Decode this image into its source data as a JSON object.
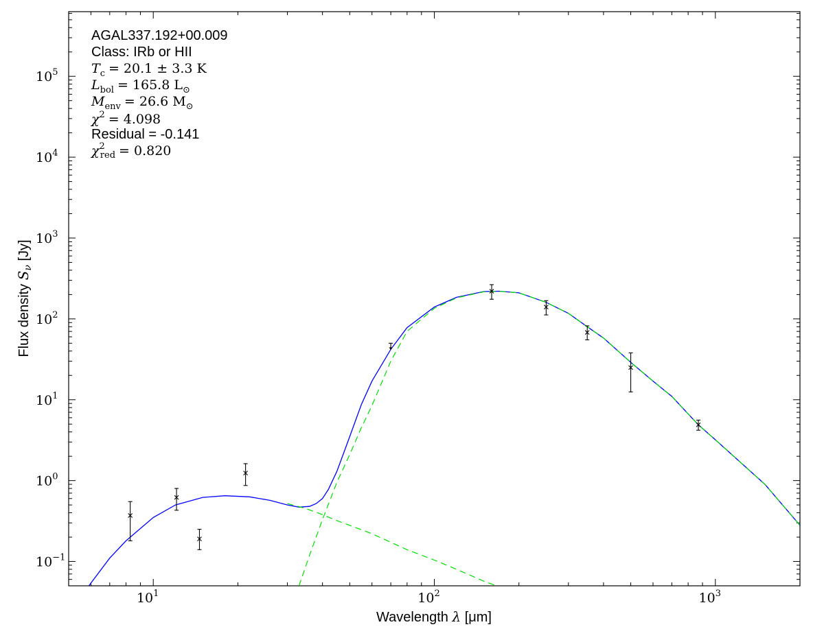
{
  "chart_data": {
    "type": "line",
    "title": "",
    "xlabel": "Wavelength",
    "xlabel_symbol": "λ",
    "xlabel_unit": "[μm]",
    "ylabel": "Flux density",
    "ylabel_symbol": "S",
    "ylabel_sub": "ν",
    "ylabel_unit": "[Jy]",
    "xscale": "log",
    "yscale": "log",
    "xlim": [
      5,
      2000
    ],
    "ylim": [
      0.05,
      630000
    ],
    "grid": false,
    "x_ticks": [
      {
        "base": "10",
        "exp": "1",
        "value": 10
      },
      {
        "base": "10",
        "exp": "2",
        "value": 100
      },
      {
        "base": "10",
        "exp": "3",
        "value": 1000
      }
    ],
    "y_ticks": [
      {
        "base": "10",
        "exp": "−1",
        "value": 0.1
      },
      {
        "base": "10",
        "exp": "0",
        "value": 1
      },
      {
        "base": "10",
        "exp": "1",
        "value": 10
      },
      {
        "base": "10",
        "exp": "2",
        "value": 100
      },
      {
        "base": "10",
        "exp": "3",
        "value": 1000
      },
      {
        "base": "10",
        "exp": "4",
        "value": 10000
      },
      {
        "base": "10",
        "exp": "5",
        "value": 100000
      }
    ],
    "annotations": {
      "source": "AGAL337.192+00.009",
      "class_line": "Class: IRb or HII",
      "tc": {
        "symbol": "T",
        "sub": "c",
        "value": "= 20.1 ± 3.3 K"
      },
      "lbol": {
        "symbol": "L",
        "sub": "bol",
        "value": "= 165.8 L",
        "unit_sub": "⊙"
      },
      "menv": {
        "symbol": "M",
        "sub": "env",
        "value": "= 26.6 M",
        "unit_sub": "⊙"
      },
      "chi2": {
        "symbol": "χ",
        "sup": "2",
        "value": "= 4.098"
      },
      "residual": "Residual = -0.141",
      "chi2red": {
        "symbol": "χ",
        "sup": "2",
        "sub": "red",
        "value": "= 0.820"
      }
    },
    "observations": [
      {
        "x": 8.28,
        "y": 0.37,
        "yerr_low": 0.18,
        "yerr_high": 0.55
      },
      {
        "x": 12.1,
        "y": 0.62,
        "yerr_low": 0.43,
        "yerr_high": 0.8
      },
      {
        "x": 14.6,
        "y": 0.19,
        "yerr_low": 0.14,
        "yerr_high": 0.25
      },
      {
        "x": 21.3,
        "y": 1.24,
        "yerr_low": 0.87,
        "yerr_high": 1.62
      },
      {
        "x": 160,
        "y": 220,
        "yerr_low": 175,
        "yerr_high": 265
      },
      {
        "x": 250,
        "y": 140,
        "yerr_low": 112,
        "yerr_high": 168
      },
      {
        "x": 350,
        "y": 68,
        "yerr_low": 55,
        "yerr_high": 82
      },
      {
        "x": 500,
        "y": 25,
        "yerr_low": 12.5,
        "yerr_high": 38
      },
      {
        "x": 870,
        "y": 4.9,
        "yerr_low": 4.2,
        "yerr_high": 5.6
      }
    ],
    "upper_limits": [
      {
        "x": 70,
        "y": 50
      }
    ],
    "series": [
      {
        "style": "solid",
        "color": "#0000ff",
        "x": [
          5.9,
          7,
          8,
          10,
          12,
          15,
          18,
          22,
          26,
          30,
          33,
          36,
          38,
          40,
          42,
          45,
          50,
          55,
          60,
          70,
          80,
          100,
          120,
          150,
          170,
          200,
          250,
          300,
          350,
          400,
          500,
          600,
          700,
          870,
          1000,
          1500,
          2000
        ],
        "y": [
          0.05,
          0.11,
          0.18,
          0.35,
          0.5,
          0.62,
          0.65,
          0.63,
          0.57,
          0.5,
          0.47,
          0.48,
          0.52,
          0.6,
          0.78,
          1.3,
          3.5,
          8.7,
          17,
          42,
          78,
          140,
          185,
          218,
          220,
          210,
          160,
          117,
          80,
          58,
          29,
          17,
          11,
          4.9,
          3.2,
          0.9,
          0.28
        ]
      },
      {
        "style": "dashed",
        "color": "#00dd00",
        "x": [
          30,
          35,
          40,
          45,
          50,
          60,
          80,
          100,
          120,
          150,
          200
        ],
        "y": [
          0.52,
          0.45,
          0.38,
          0.32,
          0.28,
          0.22,
          0.14,
          0.104,
          0.08,
          0.057,
          0.04
        ]
      },
      {
        "style": "dashed",
        "color": "#00dd00",
        "x": [
          33,
          36,
          40,
          45,
          50,
          55,
          60,
          70,
          80,
          100,
          120,
          150,
          170,
          200,
          250,
          300,
          350,
          400,
          500,
          600,
          700,
          870,
          1000,
          1500,
          2000
        ],
        "y": [
          0.05,
          0.12,
          0.33,
          0.95,
          2.1,
          4.5,
          8.5,
          30,
          70,
          135,
          182,
          216,
          219,
          210,
          160,
          117,
          80,
          58,
          29,
          17,
          11,
          4.9,
          3.2,
          0.9,
          0.28
        ]
      }
    ]
  }
}
